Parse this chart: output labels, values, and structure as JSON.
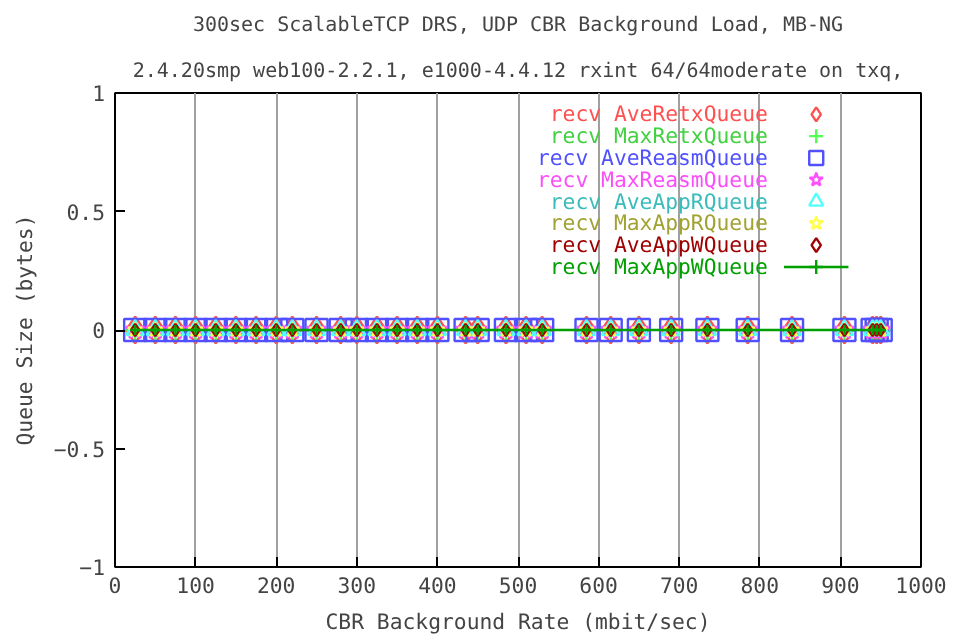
{
  "chart_data": {
    "type": "scatter",
    "title": "300sec ScalableTCP DRS, UDP CBR Background Load, MB-NG",
    "subtitle": "2.4.20smp web100-2.2.1, e1000-4.4.12 rxint 64/64moderate on txq,",
    "xlabel": "CBR Background Rate (mbit/sec)",
    "ylabel": "Queue Size (bytes)",
    "x": [
      25,
      50,
      75,
      100,
      125,
      150,
      175,
      200,
      220,
      250,
      280,
      300,
      325,
      350,
      375,
      400,
      435,
      450,
      485,
      510,
      530,
      585,
      615,
      650,
      690,
      735,
      785,
      840,
      905,
      940,
      945,
      950
    ],
    "series": [
      {
        "name": "recv AveRetxQueue",
        "color": "#ff5050",
        "marker": "diamond",
        "values": [
          0,
          0,
          0,
          0,
          0,
          0,
          0,
          0,
          0,
          0,
          0,
          0,
          0,
          0,
          0,
          0,
          0,
          0,
          0,
          0,
          0,
          0,
          0,
          0,
          0,
          0,
          0,
          0,
          0,
          0,
          0,
          0
        ]
      },
      {
        "name": "recv MaxRetxQueue",
        "color": "#50ff50",
        "marker": "cross",
        "values": [
          0,
          0,
          0,
          0,
          0,
          0,
          0,
          0,
          0,
          0,
          0,
          0,
          0,
          0,
          0,
          0,
          0,
          0,
          0,
          0,
          0,
          0,
          0,
          0,
          0,
          0,
          0,
          0,
          0,
          0,
          0,
          0
        ]
      },
      {
        "name": "recv AveReasmQueue",
        "color": "#5050ff",
        "marker": "square",
        "values": [
          0,
          0,
          0,
          0,
          0,
          0,
          0,
          0,
          0,
          0,
          0,
          0,
          0,
          0,
          0,
          0,
          0,
          0,
          0,
          0,
          0,
          0,
          0,
          0,
          0,
          0,
          0,
          0,
          0,
          0,
          0,
          0
        ]
      },
      {
        "name": "recv MaxReasmQueue",
        "color": "#ff50ff",
        "marker": "star",
        "values": [
          0,
          0,
          0,
          0,
          0,
          0,
          0,
          0,
          0,
          0,
          0,
          0,
          0,
          0,
          0,
          0,
          0,
          0,
          0,
          0,
          0,
          0,
          0,
          0,
          0,
          0,
          0,
          0,
          0,
          0,
          0,
          0
        ]
      },
      {
        "name": "recv AveAppRQueue",
        "color": "#50ffff",
        "marker": "triangle",
        "values": [
          0,
          0,
          0,
          0,
          0,
          0,
          0,
          0,
          0,
          0,
          0,
          0,
          0,
          0,
          0,
          0,
          0,
          0,
          0,
          0,
          0,
          0,
          0,
          0,
          0,
          0,
          0,
          0,
          0,
          0,
          0,
          0
        ]
      },
      {
        "name": "recv MaxAppRQueue",
        "color": "#ffff50",
        "marker": "star",
        "values": [
          0,
          0,
          0,
          0,
          0,
          0,
          0,
          0,
          0,
          0,
          0,
          0,
          0,
          0,
          0,
          0,
          0,
          0,
          0,
          0,
          0,
          0,
          0,
          0,
          0,
          0,
          0,
          0,
          0,
          0,
          0,
          0
        ]
      },
      {
        "name": "recv AveAppWQueue",
        "color": "#a00000",
        "marker": "diamond",
        "values": [
          0,
          0,
          0,
          0,
          0,
          0,
          0,
          0,
          0,
          0,
          0,
          0,
          0,
          0,
          0,
          0,
          0,
          0,
          0,
          0,
          0,
          0,
          0,
          0,
          0,
          0,
          0,
          0,
          0,
          0,
          0,
          0
        ]
      },
      {
        "name": "recv MaxAppWQueue",
        "color": "#00a000",
        "marker": "cross",
        "type": "line",
        "values": [
          0,
          0,
          0,
          0,
          0,
          0,
          0,
          0,
          0,
          0,
          0,
          0,
          0,
          0,
          0,
          0,
          0,
          0,
          0,
          0,
          0,
          0,
          0,
          0,
          0,
          0,
          0,
          0,
          0,
          0,
          0,
          0
        ]
      }
    ],
    "xlim": [
      0,
      1000
    ],
    "xticks": [
      0,
      100,
      200,
      300,
      400,
      500,
      600,
      700,
      800,
      900,
      1000
    ],
    "ylim": [
      -1,
      1
    ],
    "yticks": [
      -1,
      -0.5,
      0,
      0.5,
      1
    ],
    "grid": "x",
    "legend": "top right",
    "line_style": "solid"
  }
}
